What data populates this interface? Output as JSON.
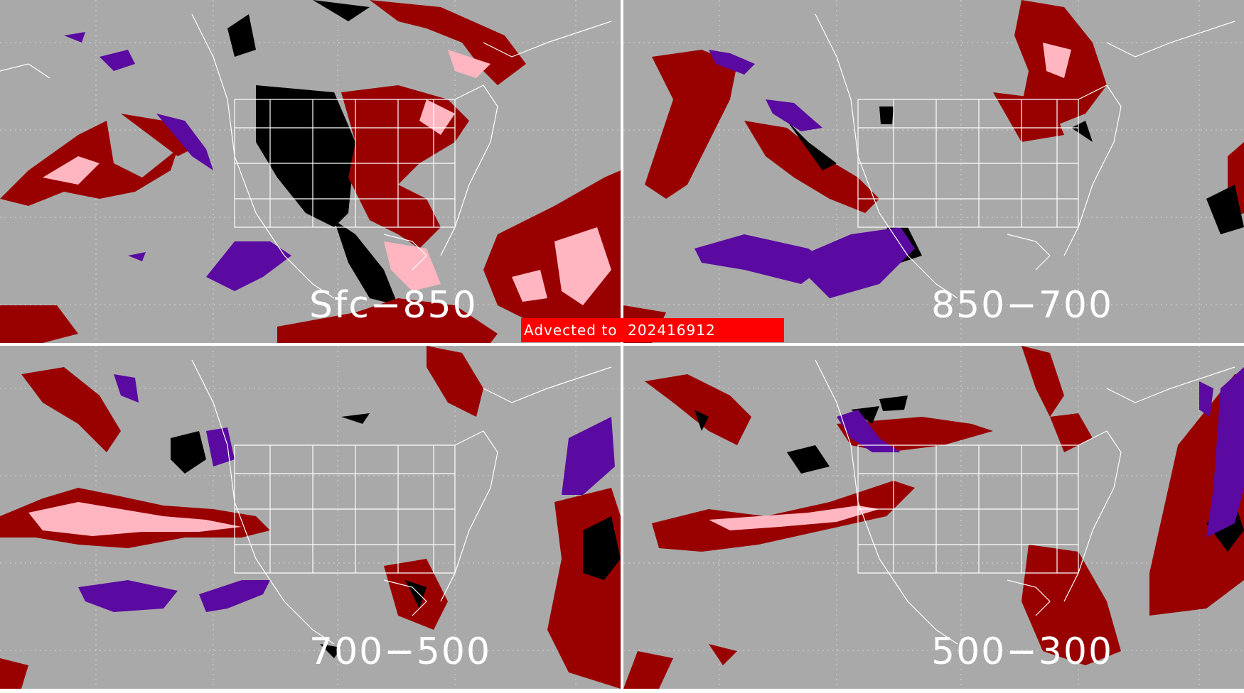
{
  "map": {
    "banner": "Advected to  202416912",
    "panels": [
      {
        "id": "tl",
        "layer_label": "Sfc−850"
      },
      {
        "id": "tr",
        "layer_label": "850−700"
      },
      {
        "id": "bl",
        "layer_label": "700−500"
      },
      {
        "id": "br",
        "layer_label": "500−300"
      }
    ],
    "colors": {
      "background": "#a9a9a9",
      "dark_red": "#990000",
      "pink": "#ffb6c1",
      "purple": "#5a0aa0",
      "black": "#000000",
      "boundaries": "#ffffff",
      "banner": "#ff0000"
    }
  }
}
